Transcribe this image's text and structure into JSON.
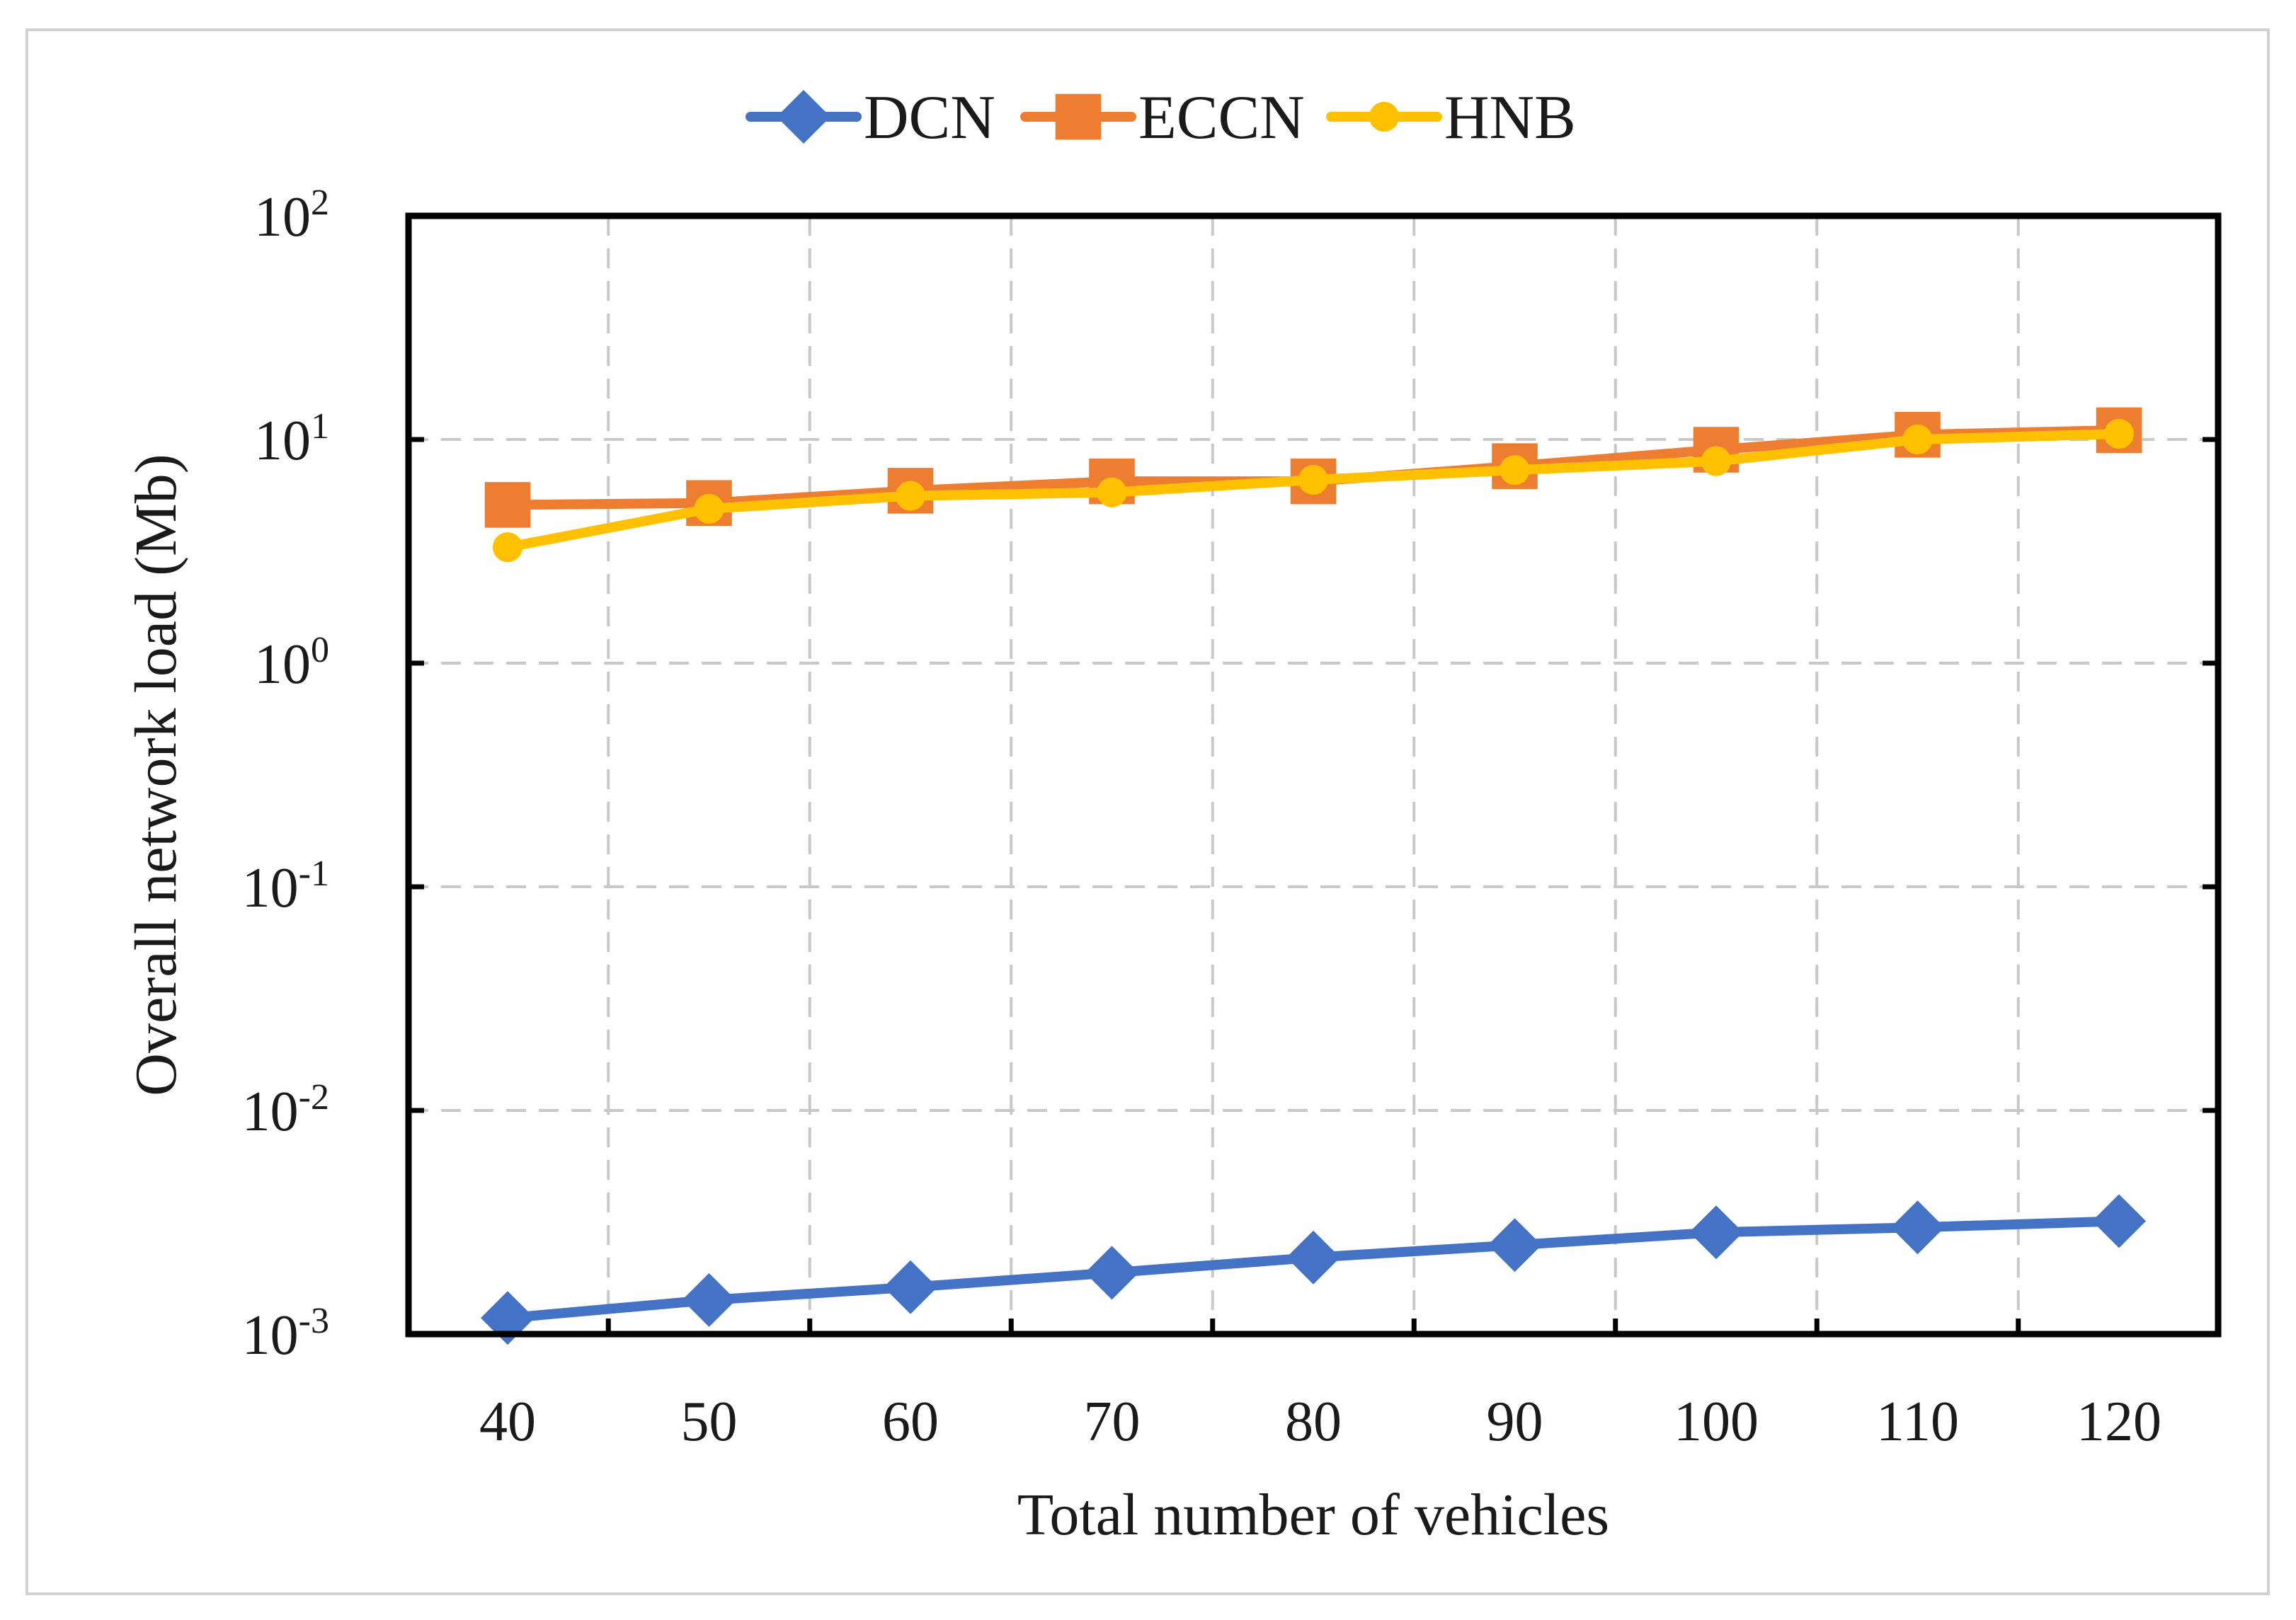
{
  "chart_data": {
    "type": "line",
    "title": "",
    "xlabel": "Total number of vehicles",
    "ylabel": "Overall network load (Mb)",
    "yscale": "log",
    "ylim": [
      0.001,
      100
    ],
    "x": [
      40,
      50,
      60,
      70,
      80,
      90,
      100,
      110,
      120
    ],
    "x_ticks": [
      "40",
      "50",
      "60",
      "70",
      "80",
      "90",
      "100",
      "110",
      "120"
    ],
    "y_ticks": [
      {
        "value": 100,
        "base": "10",
        "exp": "2"
      },
      {
        "value": 10,
        "base": "10",
        "exp": "1"
      },
      {
        "value": 1,
        "base": "10",
        "exp": "0"
      },
      {
        "value": 0.1,
        "base": "10",
        "exp": "-1"
      },
      {
        "value": 0.01,
        "base": "10",
        "exp": "-2"
      },
      {
        "value": 0.001,
        "base": "10",
        "exp": "-3"
      }
    ],
    "grid": true,
    "legend_position": "top-center",
    "series": [
      {
        "name": "DCN",
        "color": "#4472C4",
        "marker": "diamond",
        "values": [
          0.00118,
          0.00142,
          0.00162,
          0.00188,
          0.0022,
          0.0025,
          0.00285,
          0.003,
          0.0032
        ]
      },
      {
        "name": "ECCN",
        "color": "#ED7D31",
        "marker": "square",
        "values": [
          5.1,
          5.2,
          5.9,
          6.5,
          6.5,
          7.6,
          9.0,
          10.5,
          11.0
        ]
      },
      {
        "name": "HNB",
        "color": "#FFC000",
        "marker": "circle",
        "values": [
          3.3,
          4.9,
          5.6,
          5.8,
          6.6,
          7.3,
          8.0,
          10.0,
          10.6
        ]
      }
    ]
  }
}
